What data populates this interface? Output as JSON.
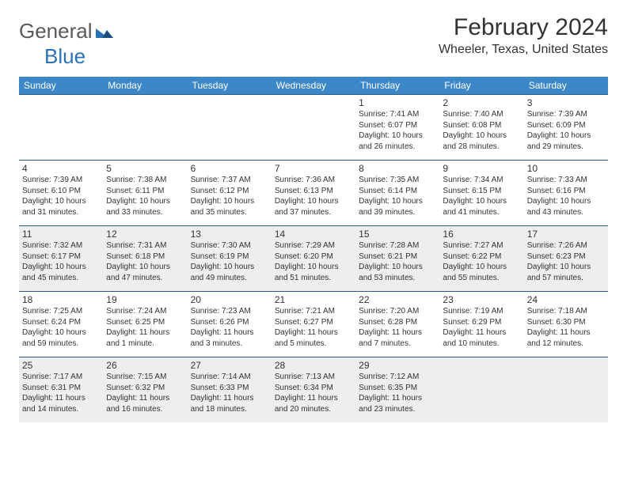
{
  "brand": {
    "part1": "General",
    "part2": "Blue"
  },
  "header": {
    "month_title": "February 2024",
    "location": "Wheeler, Texas, United States"
  },
  "calendar": {
    "weekdays": [
      "Sunday",
      "Monday",
      "Tuesday",
      "Wednesday",
      "Thursday",
      "Friday",
      "Saturday"
    ],
    "header_bg": "#3c87c7",
    "header_fg": "#ffffff",
    "rule_color": "#2a5b8c",
    "shade_color": "#eceeef",
    "weeks": [
      {
        "shaded": false,
        "days": [
          null,
          null,
          null,
          null,
          {
            "n": "1",
            "sr": "7:41 AM",
            "ss": "6:07 PM",
            "dl": "Daylight: 10 hours and 26 minutes."
          },
          {
            "n": "2",
            "sr": "7:40 AM",
            "ss": "6:08 PM",
            "dl": "Daylight: 10 hours and 28 minutes."
          },
          {
            "n": "3",
            "sr": "7:39 AM",
            "ss": "6:09 PM",
            "dl": "Daylight: 10 hours and 29 minutes."
          }
        ]
      },
      {
        "shaded": false,
        "days": [
          {
            "n": "4",
            "sr": "7:39 AM",
            "ss": "6:10 PM",
            "dl": "Daylight: 10 hours and 31 minutes."
          },
          {
            "n": "5",
            "sr": "7:38 AM",
            "ss": "6:11 PM",
            "dl": "Daylight: 10 hours and 33 minutes."
          },
          {
            "n": "6",
            "sr": "7:37 AM",
            "ss": "6:12 PM",
            "dl": "Daylight: 10 hours and 35 minutes."
          },
          {
            "n": "7",
            "sr": "7:36 AM",
            "ss": "6:13 PM",
            "dl": "Daylight: 10 hours and 37 minutes."
          },
          {
            "n": "8",
            "sr": "7:35 AM",
            "ss": "6:14 PM",
            "dl": "Daylight: 10 hours and 39 minutes."
          },
          {
            "n": "9",
            "sr": "7:34 AM",
            "ss": "6:15 PM",
            "dl": "Daylight: 10 hours and 41 minutes."
          },
          {
            "n": "10",
            "sr": "7:33 AM",
            "ss": "6:16 PM",
            "dl": "Daylight: 10 hours and 43 minutes."
          }
        ]
      },
      {
        "shaded": true,
        "days": [
          {
            "n": "11",
            "sr": "7:32 AM",
            "ss": "6:17 PM",
            "dl": "Daylight: 10 hours and 45 minutes."
          },
          {
            "n": "12",
            "sr": "7:31 AM",
            "ss": "6:18 PM",
            "dl": "Daylight: 10 hours and 47 minutes."
          },
          {
            "n": "13",
            "sr": "7:30 AM",
            "ss": "6:19 PM",
            "dl": "Daylight: 10 hours and 49 minutes."
          },
          {
            "n": "14",
            "sr": "7:29 AM",
            "ss": "6:20 PM",
            "dl": "Daylight: 10 hours and 51 minutes."
          },
          {
            "n": "15",
            "sr": "7:28 AM",
            "ss": "6:21 PM",
            "dl": "Daylight: 10 hours and 53 minutes."
          },
          {
            "n": "16",
            "sr": "7:27 AM",
            "ss": "6:22 PM",
            "dl": "Daylight: 10 hours and 55 minutes."
          },
          {
            "n": "17",
            "sr": "7:26 AM",
            "ss": "6:23 PM",
            "dl": "Daylight: 10 hours and 57 minutes."
          }
        ]
      },
      {
        "shaded": false,
        "days": [
          {
            "n": "18",
            "sr": "7:25 AM",
            "ss": "6:24 PM",
            "dl": "Daylight: 10 hours and 59 minutes."
          },
          {
            "n": "19",
            "sr": "7:24 AM",
            "ss": "6:25 PM",
            "dl": "Daylight: 11 hours and 1 minute."
          },
          {
            "n": "20",
            "sr": "7:23 AM",
            "ss": "6:26 PM",
            "dl": "Daylight: 11 hours and 3 minutes."
          },
          {
            "n": "21",
            "sr": "7:21 AM",
            "ss": "6:27 PM",
            "dl": "Daylight: 11 hours and 5 minutes."
          },
          {
            "n": "22",
            "sr": "7:20 AM",
            "ss": "6:28 PM",
            "dl": "Daylight: 11 hours and 7 minutes."
          },
          {
            "n": "23",
            "sr": "7:19 AM",
            "ss": "6:29 PM",
            "dl": "Daylight: 11 hours and 10 minutes."
          },
          {
            "n": "24",
            "sr": "7:18 AM",
            "ss": "6:30 PM",
            "dl": "Daylight: 11 hours and 12 minutes."
          }
        ]
      },
      {
        "shaded": true,
        "days": [
          {
            "n": "25",
            "sr": "7:17 AM",
            "ss": "6:31 PM",
            "dl": "Daylight: 11 hours and 14 minutes."
          },
          {
            "n": "26",
            "sr": "7:15 AM",
            "ss": "6:32 PM",
            "dl": "Daylight: 11 hours and 16 minutes."
          },
          {
            "n": "27",
            "sr": "7:14 AM",
            "ss": "6:33 PM",
            "dl": "Daylight: 11 hours and 18 minutes."
          },
          {
            "n": "28",
            "sr": "7:13 AM",
            "ss": "6:34 PM",
            "dl": "Daylight: 11 hours and 20 minutes."
          },
          {
            "n": "29",
            "sr": "7:12 AM",
            "ss": "6:35 PM",
            "dl": "Daylight: 11 hours and 23 minutes."
          },
          null,
          null
        ]
      }
    ]
  }
}
